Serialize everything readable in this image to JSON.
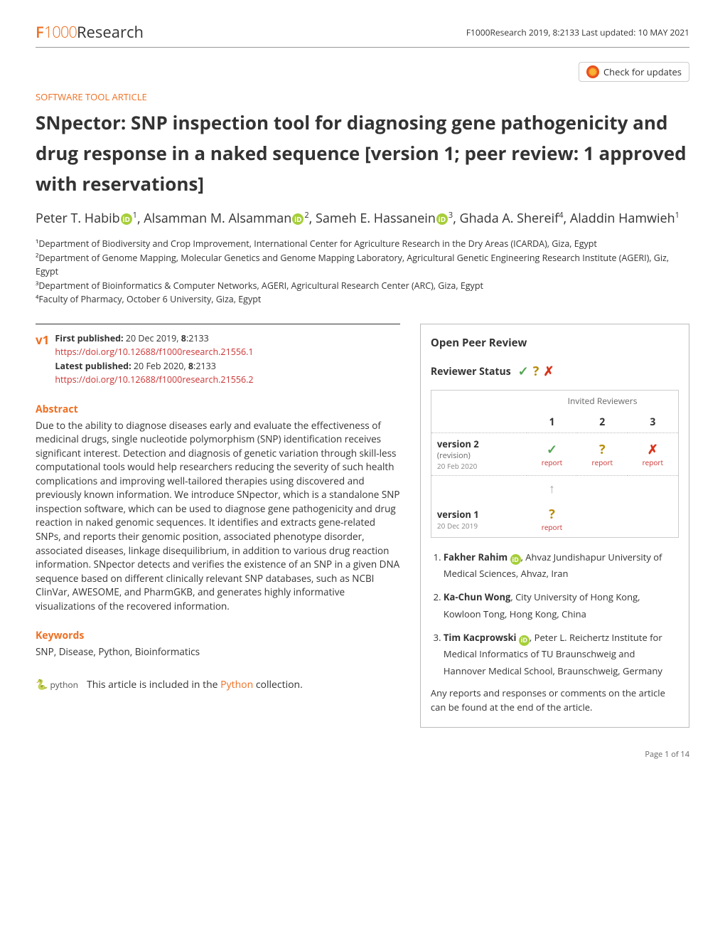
{
  "header": {
    "logo_f": "F",
    "logo_1000": "1000",
    "logo_research": "Research",
    "meta": "F1000Research 2019, 8:2133 Last updated: 10 MAY 2021",
    "update_badge": "Check for updates"
  },
  "article": {
    "type": "SOFTWARE TOOL ARTICLE",
    "title": "SNpector: SNP inspection tool for diagnosing gene pathogenicity and drug response in a naked sequence",
    "version_line": "[version 1; peer review: 1 approved with reservations]"
  },
  "authors": [
    {
      "name": "Peter T. Habib",
      "orcid": true,
      "aff": "1"
    },
    {
      "name": "Alsamman M. Alsamman",
      "orcid": true,
      "aff": "2"
    },
    {
      "name": "Sameh E. Hassanein",
      "orcid": true,
      "aff": "3"
    },
    {
      "name": "Ghada A. Shereif",
      "orcid": false,
      "aff": "4"
    },
    {
      "name": "Aladdin Hamwieh",
      "orcid": false,
      "aff": "1"
    }
  ],
  "affiliations": [
    "¹Department of Biodiversity and Crop Improvement, International Center for Agriculture Research in the Dry Areas (ICARDA), Giza, Egypt",
    "²Department of Genome Mapping, Molecular Genetics and Genome Mapping Laboratory, Agricultural Genetic Engineering Research Institute (AGERI), Giz, Egypt",
    "³Department of Bioinformatics & Computer Networks, AGERI, Agricultural Research Center (ARC), Giza, Egypt",
    "⁴Faculty of Pharmacy, October 6 University, Giza, Egypt"
  ],
  "publication": {
    "v_label": "v1",
    "first_pub_label": "First published:",
    "first_pub": " 20 Dec 2019, ",
    "first_vol": "8",
    "first_issue": ":2133",
    "first_doi": "https://doi.org/10.12688/f1000research.21556.1",
    "latest_pub_label": "Latest published:",
    "latest_pub": " 20 Feb 2020, ",
    "latest_vol": "8",
    "latest_issue": ":2133",
    "latest_doi": "https://doi.org/10.12688/f1000research.21556.2"
  },
  "abstract": {
    "heading": "Abstract",
    "body": "Due to the ability to diagnose diseases early and evaluate the effectiveness of medicinal drugs, single nucleotide polymorphism (SNP) identification receives significant interest. Detection and diagnosis of genetic variation through skill-less computational tools would help researchers reducing the severity of such health complications and improving well-tailored therapies using discovered and previously known information. We introduce SNpector, which is a standalone SNP inspection software, which can be used to diagnose gene pathogenicity and drug reaction in naked genomic sequences. It identifies and extracts gene-related SNPs, and reports their genomic position, associated phenotype disorder, associated diseases, linkage disequilibrium, in addition to various drug reaction information. SNpector detects and verifies the existence of an SNP in a given DNA sequence based on different clinically relevant SNP databases, such as NCBI ClinVar, AWESOME, and PharmGKB, and generates highly informative visualizations of the recovered information."
  },
  "keywords": {
    "heading": "Keywords",
    "body": "SNP, Disease, Python, Bioinformatics"
  },
  "collection": {
    "python_label": "python",
    "text_before": "This article is included in the ",
    "link": "Python",
    "text_after": " collection."
  },
  "peer_review": {
    "box_title": "Open Peer Review",
    "status_label": "Reviewer Status",
    "invited_label": "Invited Reviewers",
    "columns": [
      "1",
      "2",
      "3"
    ],
    "rows": [
      {
        "name": "version 2",
        "sub": "(revision)",
        "date": "20 Feb 2020",
        "cells": [
          {
            "icon": "check",
            "report": true
          },
          {
            "icon": "question",
            "report": true
          },
          {
            "icon": "x",
            "report": true
          }
        ]
      },
      {
        "name": "version 1",
        "sub": "",
        "date": "20 Dec 2019",
        "cells": [
          {
            "icon": "question",
            "report": true,
            "arrow_above": true
          },
          {
            "icon": "",
            "report": false
          },
          {
            "icon": "",
            "report": false
          }
        ]
      }
    ],
    "report_label": "report",
    "reviewers": [
      {
        "name": "Fakher Rahim",
        "orcid": true,
        "aff": ", Ahvaz Jundishapur University of Medical Sciences, Ahvaz, Iran"
      },
      {
        "name": "Ka-Chun Wong",
        "orcid": false,
        "aff": ", City University of Hong Kong, Kowloon Tong, Hong Kong, China"
      },
      {
        "name": "Tim Kacprowski",
        "orcid": true,
        "aff": ", Peter L. Reichertz Institute for Medical Informatics of TU Braunschweig and Hannover Medical School, Braunschweig, Germany"
      }
    ],
    "footer": "Any reports and responses or comments on the article can be found at the end of the article."
  },
  "page_number": "Page 1 of 14",
  "colors": {
    "accent": "#ee7023",
    "doi_red": "#cc3333",
    "check_green": "#52a552",
    "question_amber": "#b88a00",
    "x_red": "#d9331a",
    "orcid_green": "#a6ce39"
  }
}
